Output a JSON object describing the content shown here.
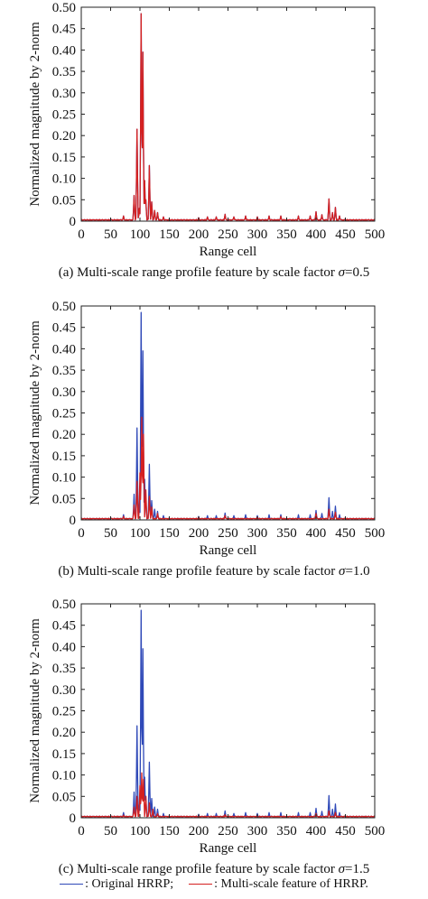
{
  "chart_data": [
    {
      "type": "line",
      "caption_prefix": "(a) Multi-scale range profile feature by scale factor ",
      "caption_symbol": "σ",
      "caption_value": "=0.5",
      "xlabel": "Range cell",
      "ylabel": "Normalized magnitude by 2-norm",
      "xlim": [
        0,
        500
      ],
      "ylim": [
        0,
        0.5
      ],
      "xticks": [
        "0",
        "50",
        "100",
        "150",
        "200",
        "250",
        "300",
        "350",
        "400",
        "450",
        "500"
      ],
      "yticks": [
        "0",
        "0.05",
        "0.10",
        "0.15",
        "0.20",
        "0.25",
        "0.30",
        "0.35",
        "0.40",
        "0.45",
        "0.50"
      ],
      "grid": false,
      "series": [
        {
          "color": "#2f49b8",
          "peaks": [
            [
              72,
              0.012
            ],
            [
              90,
              0.06
            ],
            [
              95,
              0.215
            ],
            [
              99,
              0.03
            ],
            [
              102,
              0.485
            ],
            [
              105,
              0.395
            ],
            [
              108,
              0.095
            ],
            [
              110,
              0.05
            ],
            [
              116,
              0.13
            ],
            [
              120,
              0.045
            ],
            [
              125,
              0.025
            ],
            [
              130,
              0.02
            ],
            [
              140,
              0.01
            ],
            [
              200,
              0.008
            ],
            [
              215,
              0.01
            ],
            [
              230,
              0.01
            ],
            [
              245,
              0.016
            ],
            [
              260,
              0.01
            ],
            [
              280,
              0.012
            ],
            [
              300,
              0.01
            ],
            [
              320,
              0.012
            ],
            [
              340,
              0.012
            ],
            [
              370,
              0.012
            ],
            [
              390,
              0.012
            ],
            [
              400,
              0.022
            ],
            [
              410,
              0.015
            ],
            [
              422,
              0.052
            ],
            [
              428,
              0.02
            ],
            [
              433,
              0.032
            ],
            [
              440,
              0.012
            ]
          ]
        },
        {
          "color": "#d42020",
          "peaks": [
            [
              72,
              0.012
            ],
            [
              90,
              0.06
            ],
            [
              95,
              0.215
            ],
            [
              99,
              0.03
            ],
            [
              102,
              0.485
            ],
            [
              105,
              0.395
            ],
            [
              108,
              0.095
            ],
            [
              110,
              0.05
            ],
            [
              116,
              0.13
            ],
            [
              120,
              0.045
            ],
            [
              125,
              0.025
            ],
            [
              130,
              0.02
            ],
            [
              140,
              0.01
            ],
            [
              200,
              0.008
            ],
            [
              215,
              0.01
            ],
            [
              230,
              0.01
            ],
            [
              245,
              0.016
            ],
            [
              260,
              0.01
            ],
            [
              280,
              0.012
            ],
            [
              300,
              0.01
            ],
            [
              320,
              0.012
            ],
            [
              340,
              0.012
            ],
            [
              370,
              0.012
            ],
            [
              390,
              0.012
            ],
            [
              400,
              0.022
            ],
            [
              410,
              0.015
            ],
            [
              422,
              0.052
            ],
            [
              428,
              0.02
            ],
            [
              433,
              0.032
            ],
            [
              440,
              0.012
            ]
          ]
        }
      ]
    },
    {
      "type": "line",
      "caption_prefix": "(b) Multi-scale range profile feature by scale factor ",
      "caption_symbol": "σ",
      "caption_value": "=1.0",
      "xlabel": "Range cell",
      "ylabel": "Normalized magnitude by 2-norm",
      "xlim": [
        0,
        500
      ],
      "ylim": [
        0,
        0.5
      ],
      "xticks": [
        "0",
        "50",
        "100",
        "150",
        "200",
        "250",
        "300",
        "350",
        "400",
        "450",
        "500"
      ],
      "yticks": [
        "0",
        "0.05",
        "0.10",
        "0.15",
        "0.20",
        "0.25",
        "0.30",
        "0.35",
        "0.40",
        "0.45",
        "0.50"
      ],
      "grid": false,
      "series": [
        {
          "color": "#2f49b8",
          "peaks": [
            [
              72,
              0.012
            ],
            [
              90,
              0.06
            ],
            [
              95,
              0.215
            ],
            [
              99,
              0.03
            ],
            [
              102,
              0.485
            ],
            [
              105,
              0.395
            ],
            [
              108,
              0.095
            ],
            [
              110,
              0.05
            ],
            [
              116,
              0.13
            ],
            [
              120,
              0.045
            ],
            [
              125,
              0.025
            ],
            [
              130,
              0.02
            ],
            [
              140,
              0.01
            ],
            [
              200,
              0.008
            ],
            [
              215,
              0.01
            ],
            [
              230,
              0.01
            ],
            [
              245,
              0.016
            ],
            [
              260,
              0.01
            ],
            [
              280,
              0.012
            ],
            [
              300,
              0.01
            ],
            [
              320,
              0.012
            ],
            [
              340,
              0.012
            ],
            [
              370,
              0.012
            ],
            [
              390,
              0.012
            ],
            [
              400,
              0.022
            ],
            [
              410,
              0.015
            ],
            [
              422,
              0.052
            ],
            [
              428,
              0.02
            ],
            [
              433,
              0.032
            ],
            [
              440,
              0.012
            ]
          ]
        },
        {
          "color": "#d42020",
          "peaks": [
            [
              72,
              0.008
            ],
            [
              90,
              0.035
            ],
            [
              95,
              0.09
            ],
            [
              100,
              0.11
            ],
            [
              103,
              0.24
            ],
            [
              106,
              0.2
            ],
            [
              110,
              0.07
            ],
            [
              116,
              0.055
            ],
            [
              120,
              0.03
            ],
            [
              130,
              0.015
            ],
            [
              200,
              0.006
            ],
            [
              245,
              0.01
            ],
            [
              300,
              0.007
            ],
            [
              340,
              0.008
            ],
            [
              400,
              0.015
            ],
            [
              422,
              0.025
            ],
            [
              433,
              0.018
            ]
          ]
        }
      ]
    },
    {
      "type": "line",
      "caption_prefix": "(c) Multi-scale range profile feature by scale factor ",
      "caption_symbol": "σ",
      "caption_value": "=1.5",
      "xlabel": "Range cell",
      "ylabel": "Normalized magnitude by 2-norm",
      "xlim": [
        0,
        500
      ],
      "ylim": [
        0,
        0.5
      ],
      "xticks": [
        "0",
        "50",
        "100",
        "150",
        "200",
        "250",
        "300",
        "350",
        "400",
        "450",
        "500"
      ],
      "yticks": [
        "0",
        "0.05",
        "0.10",
        "0.15",
        "0.20",
        "0.25",
        "0.30",
        "0.35",
        "0.40",
        "0.45",
        "0.50"
      ],
      "grid": false,
      "series": [
        {
          "color": "#2f49b8",
          "peaks": [
            [
              72,
              0.012
            ],
            [
              90,
              0.06
            ],
            [
              95,
              0.215
            ],
            [
              99,
              0.03
            ],
            [
              102,
              0.485
            ],
            [
              105,
              0.395
            ],
            [
              108,
              0.095
            ],
            [
              110,
              0.05
            ],
            [
              116,
              0.13
            ],
            [
              120,
              0.045
            ],
            [
              125,
              0.025
            ],
            [
              130,
              0.02
            ],
            [
              140,
              0.01
            ],
            [
              200,
              0.008
            ],
            [
              215,
              0.01
            ],
            [
              230,
              0.01
            ],
            [
              245,
              0.016
            ],
            [
              260,
              0.01
            ],
            [
              280,
              0.012
            ],
            [
              300,
              0.01
            ],
            [
              320,
              0.012
            ],
            [
              340,
              0.012
            ],
            [
              370,
              0.012
            ],
            [
              390,
              0.012
            ],
            [
              400,
              0.022
            ],
            [
              410,
              0.015
            ],
            [
              422,
              0.052
            ],
            [
              428,
              0.02
            ],
            [
              433,
              0.032
            ],
            [
              440,
              0.012
            ]
          ]
        },
        {
          "color": "#d42020",
          "peaks": [
            [
              72,
              0.006
            ],
            [
              90,
              0.025
            ],
            [
              95,
              0.05
            ],
            [
              100,
              0.075
            ],
            [
              103,
              0.105
            ],
            [
              106,
              0.09
            ],
            [
              110,
              0.05
            ],
            [
              116,
              0.035
            ],
            [
              122,
              0.02
            ],
            [
              130,
              0.01
            ],
            [
              245,
              0.007
            ],
            [
              400,
              0.01
            ],
            [
              422,
              0.016
            ],
            [
              433,
              0.012
            ]
          ]
        }
      ]
    }
  ],
  "legend": {
    "items": [
      {
        "label": ": Original HRRP;",
        "color": "#2f49b8"
      },
      {
        "label": ": Multi-scale feature of HRRP.",
        "color": "#d42020"
      }
    ]
  }
}
